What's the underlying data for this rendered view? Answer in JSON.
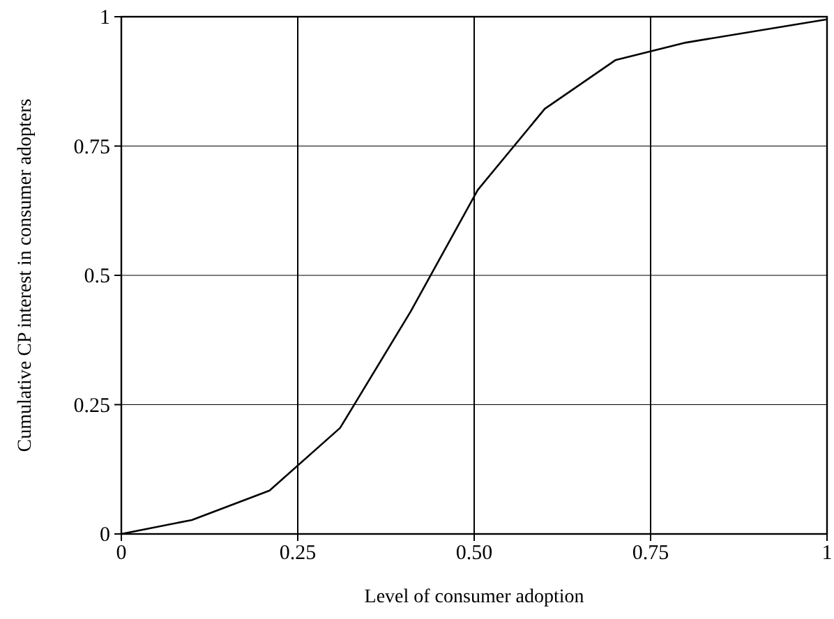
{
  "chart_data": {
    "type": "line",
    "xlabel": "Level of consumer adoption",
    "ylabel": "Cumulative CP interest in consumer adopters",
    "x": [
      0,
      0.1,
      0.21,
      0.31,
      0.41,
      0.505,
      0.6,
      0.7,
      0.8,
      1
    ],
    "series": [
      {
        "color": "#000000",
        "values": [
          0,
          0.027,
          0.084,
          0.205,
          0.43,
          0.665,
          0.822,
          0.916,
          0.95,
          0.995
        ]
      }
    ],
    "xlim": [
      0,
      1
    ],
    "ylim": [
      0,
      1
    ],
    "xticks": [
      0,
      0.25,
      {
        "value": 0.5,
        "label": "0.50"
      },
      0.75,
      1
    ],
    "yticks": [
      0,
      0.25,
      0.5,
      0.75,
      1
    ],
    "grid": true,
    "marker": "none",
    "line_style": "solid"
  }
}
